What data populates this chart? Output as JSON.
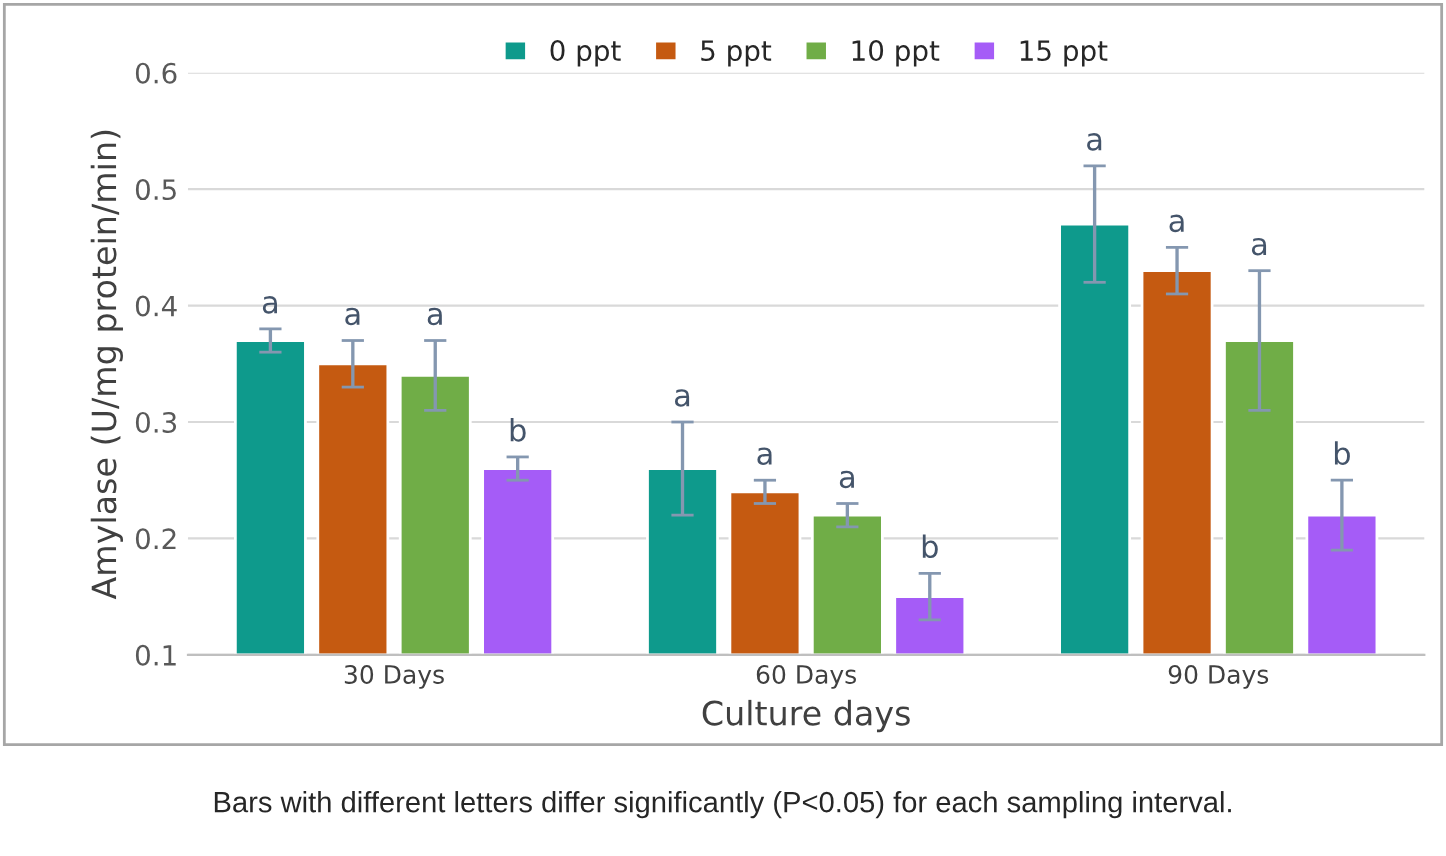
{
  "chart_data": {
    "type": "bar",
    "xlabel": "Culture days",
    "ylabel": "Amylase (U/mg protein/min)",
    "categories": [
      "30 Days",
      "60 Days",
      "90 Days"
    ],
    "series": [
      {
        "name": "0 ppt",
        "color": "#0e9a8c",
        "values": [
          0.37,
          0.26,
          0.47
        ],
        "errors": [
          0.01,
          0.04,
          0.05
        ],
        "value_labels": [
          "a",
          "a",
          "a"
        ]
      },
      {
        "name": "5 ppt",
        "color": "#c55a11",
        "values": [
          0.35,
          0.24,
          0.43
        ],
        "errors": [
          0.02,
          0.01,
          0.02
        ],
        "value_labels": [
          "a",
          "a",
          "a"
        ]
      },
      {
        "name": "10 ppt",
        "color": "#70ad47",
        "values": [
          0.34,
          0.22,
          0.37
        ],
        "errors": [
          0.03,
          0.01,
          0.06
        ],
        "value_labels": [
          "a",
          "a",
          "a"
        ]
      },
      {
        "name": "15 ppt",
        "color": "#a55cf7",
        "values": [
          0.26,
          0.15,
          0.22
        ],
        "errors": [
          0.01,
          0.02,
          0.03
        ],
        "value_labels": [
          "b",
          "b",
          "b"
        ]
      }
    ],
    "ylim": [
      0.1,
      0.6
    ],
    "yticks": [
      {
        "value": 0.1,
        "label": "0.1"
      },
      {
        "value": 0.2,
        "label": "0.2"
      },
      {
        "value": 0.3,
        "label": "0.3"
      },
      {
        "value": 0.4,
        "label": "0.4"
      },
      {
        "value": 0.5,
        "label": "0.5"
      },
      {
        "value": 0.6,
        "label": "0.6"
      }
    ],
    "grid": "y",
    "legend": "top",
    "annotations": [
      "Bars with different letters differ significantly (P<0.05) for each sampling interval."
    ]
  }
}
